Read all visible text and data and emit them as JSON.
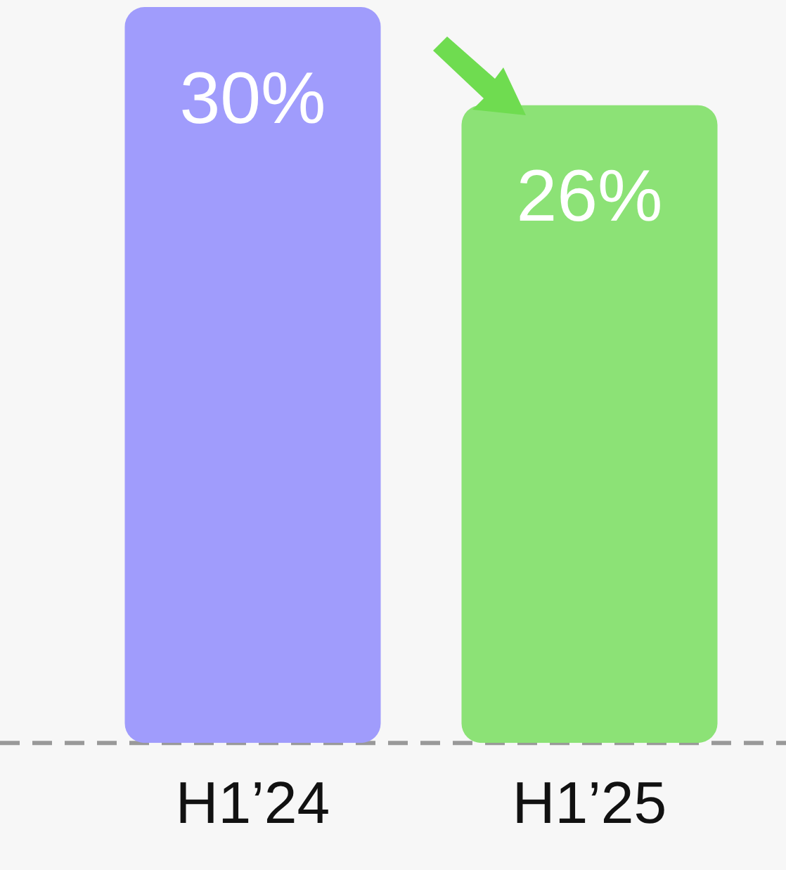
{
  "chart_data": {
    "type": "bar",
    "categories": [
      "H1’24",
      "H1’25"
    ],
    "values": [
      30,
      26
    ],
    "colors": [
      "#a09cfc",
      "#8ce276"
    ],
    "value_labels": [
      "30%",
      "26%"
    ],
    "ylim": [
      0,
      30
    ],
    "grid": false,
    "legend": false,
    "tick_labels": "x"
  }
}
